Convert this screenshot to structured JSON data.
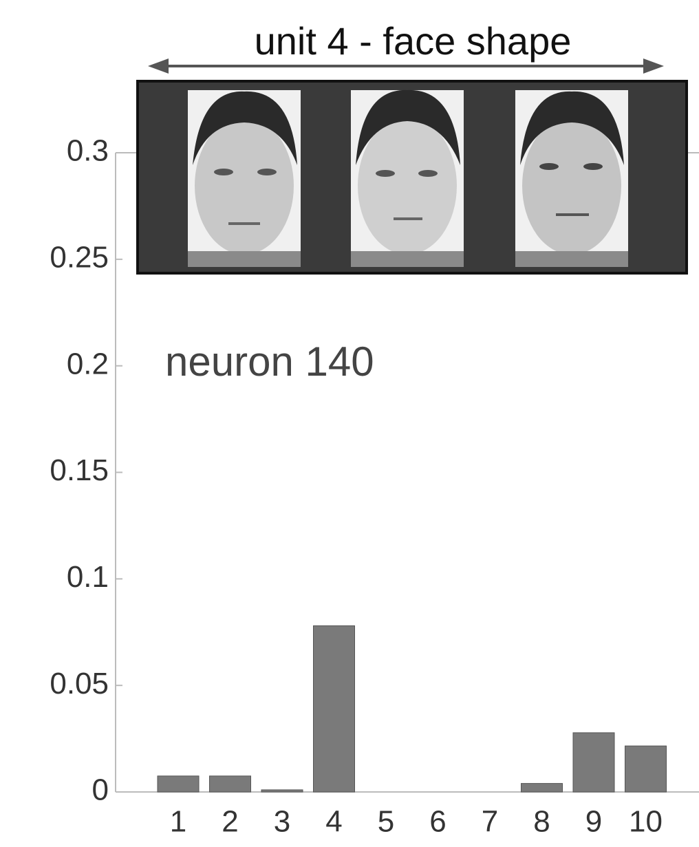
{
  "chart_data": {
    "type": "bar",
    "title": "unit 4 - face shape",
    "annotation": "neuron 140",
    "categories": [
      "1",
      "2",
      "3",
      "4",
      "5",
      "6",
      "7",
      "8",
      "9",
      "10"
    ],
    "values": [
      0.0075,
      0.0075,
      0.001,
      0.078,
      0,
      0,
      0,
      0.004,
      0.0278,
      0.0216
    ],
    "color": "#7a7a7a",
    "ylim": [
      0,
      0.3
    ],
    "yticks": [
      0,
      0.05,
      0.1,
      0.15,
      0.2,
      0.25,
      0.3
    ],
    "grid": false
  }
}
